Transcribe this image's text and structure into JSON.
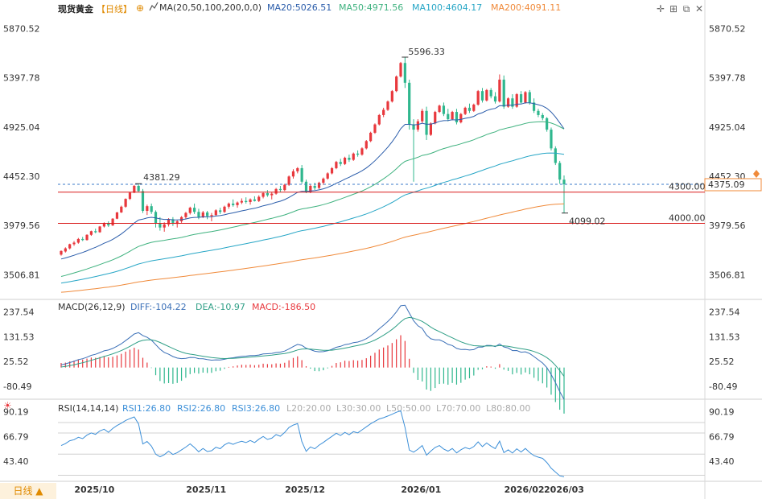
{
  "title": "现货黄金",
  "period_tag": "【日线】",
  "period_button": "日线 ▲",
  "colors": {
    "up": "#e8383d",
    "down": "#2fb78e",
    "ma20": "#2a5caa",
    "ma50": "#3fb27f",
    "ma100": "#27a6c6",
    "ma200": "#f08a3a",
    "diff": "#3a6fb7",
    "dea": "#2f9f86",
    "rsi": "#3c8fd8",
    "line": "#d91c1c",
    "dash": "#3a7ac8"
  },
  "ma": {
    "label": "MA(20,50,100,200,0,0)",
    "ma20": "MA20:5026.51",
    "ma50": "MA50:4971.56",
    "ma100": "MA100:4604.17",
    "ma200": "MA200:4091.11"
  },
  "macd": {
    "label": "MACD(26,12,9)",
    "diff": "DIFF:-104.22",
    "dea": "DEA:-10.97",
    "macd": "MACD:-186.50"
  },
  "rsi": {
    "label": "RSI(14,14,14)",
    "rsi1": "RSI1:26.80",
    "rsi2": "RSI2:26.80",
    "rsi3": "RSI3:26.80",
    "l20": "L20:20.00",
    "l30": "L30:30.00",
    "l50": "L50:50.00",
    "l70": "L70:70.00",
    "l80": "L80:80.00"
  },
  "axis": {
    "price_ticks": [
      "5870.52",
      "5397.78",
      "4925.04",
      "4452.30",
      "3979.56",
      "3506.81"
    ],
    "macd_ticks": [
      "237.54",
      "131.53",
      "25.52",
      "-80.49"
    ],
    "rsi_ticks": [
      "90.19",
      "66.79",
      "43.40"
    ],
    "dates": [
      "2025/10",
      "2025/11",
      "2025/12",
      "2026/01",
      "2026/02",
      "2026/03"
    ]
  },
  "annotations": {
    "high": "5596.33",
    "prev_high": "4381.29",
    "low": "4099.02",
    "line_4300": "4300.00",
    "line_4000": "4000.00",
    "current": "4375.09"
  },
  "chart_data": {
    "type": "candlestick",
    "title": "现货黄金 日线",
    "price_range": [
      3270,
      5990
    ],
    "macd_range": [
      -135,
      270
    ],
    "rsi_range": [
      25,
      96
    ],
    "horizontal_lines": [
      4300.0,
      4000.0,
      4375.09
    ],
    "candles": [
      [
        3700,
        3740,
        3690,
        3735
      ],
      [
        3730,
        3770,
        3720,
        3760
      ],
      [
        3760,
        3805,
        3750,
        3800
      ],
      [
        3800,
        3830,
        3785,
        3815
      ],
      [
        3815,
        3860,
        3805,
        3850
      ],
      [
        3850,
        3870,
        3830,
        3840
      ],
      [
        3840,
        3895,
        3835,
        3890
      ],
      [
        3890,
        3930,
        3880,
        3925
      ],
      [
        3925,
        3950,
        3905,
        3915
      ],
      [
        3915,
        3975,
        3910,
        3970
      ],
      [
        3970,
        4010,
        3960,
        4000
      ],
      [
        4000,
        4020,
        3965,
        3980
      ],
      [
        3980,
        4050,
        3975,
        4045
      ],
      [
        4045,
        4110,
        4040,
        4105
      ],
      [
        4105,
        4170,
        4100,
        4160
      ],
      [
        4160,
        4240,
        4150,
        4235
      ],
      [
        4235,
        4300,
        4225,
        4295
      ],
      [
        4295,
        4370,
        4290,
        4360
      ],
      [
        4360,
        4381,
        4300,
        4310
      ],
      [
        4310,
        4330,
        4100,
        4120
      ],
      [
        4120,
        4180,
        4080,
        4165
      ],
      [
        4165,
        4190,
        4090,
        4110
      ],
      [
        4110,
        4125,
        3960,
        4000
      ],
      [
        4000,
        4060,
        3930,
        3960
      ],
      [
        3960,
        4010,
        3920,
        3990
      ],
      [
        3990,
        4050,
        3970,
        4040
      ],
      [
        4040,
        4060,
        3975,
        3995
      ],
      [
        3995,
        4030,
        3960,
        4020
      ],
      [
        4020,
        4070,
        4005,
        4060
      ],
      [
        4060,
        4110,
        4040,
        4100
      ],
      [
        4100,
        4160,
        4085,
        4150
      ],
      [
        4150,
        4190,
        4090,
        4110
      ],
      [
        4110,
        4140,
        4040,
        4060
      ],
      [
        4060,
        4120,
        4050,
        4105
      ],
      [
        4105,
        4120,
        4040,
        4070
      ],
      [
        4070,
        4100,
        4020,
        4080
      ],
      [
        4080,
        4135,
        4070,
        4125
      ],
      [
        4125,
        4150,
        4090,
        4110
      ],
      [
        4110,
        4170,
        4100,
        4160
      ],
      [
        4160,
        4200,
        4140,
        4190
      ],
      [
        4190,
        4230,
        4160,
        4175
      ],
      [
        4175,
        4210,
        4150,
        4200
      ],
      [
        4200,
        4240,
        4185,
        4215
      ],
      [
        4215,
        4250,
        4190,
        4205
      ],
      [
        4205,
        4240,
        4180,
        4230
      ],
      [
        4230,
        4260,
        4210,
        4215
      ],
      [
        4215,
        4270,
        4205,
        4255
      ],
      [
        4255,
        4300,
        4240,
        4290
      ],
      [
        4290,
        4320,
        4255,
        4270
      ],
      [
        4270,
        4300,
        4230,
        4285
      ],
      [
        4285,
        4340,
        4275,
        4330
      ],
      [
        4330,
        4360,
        4300,
        4320
      ],
      [
        4320,
        4380,
        4310,
        4370
      ],
      [
        4370,
        4460,
        4360,
        4450
      ],
      [
        4450,
        4520,
        4430,
        4500
      ],
      [
        4500,
        4540,
        4480,
        4530
      ],
      [
        4530,
        4560,
        4380,
        4400
      ],
      [
        4400,
        4420,
        4290,
        4300
      ],
      [
        4300,
        4370,
        4290,
        4360
      ],
      [
        4360,
        4390,
        4320,
        4340
      ],
      [
        4340,
        4400,
        4330,
        4390
      ],
      [
        4390,
        4440,
        4370,
        4430
      ],
      [
        4430,
        4490,
        4420,
        4480
      ],
      [
        4480,
        4540,
        4470,
        4530
      ],
      [
        4530,
        4600,
        4520,
        4590
      ],
      [
        4590,
        4620,
        4550,
        4570
      ],
      [
        4570,
        4640,
        4560,
        4630
      ],
      [
        4630,
        4660,
        4590,
        4610
      ],
      [
        4610,
        4680,
        4600,
        4670
      ],
      [
        4670,
        4700,
        4640,
        4660
      ],
      [
        4660,
        4730,
        4650,
        4720
      ],
      [
        4720,
        4800,
        4710,
        4790
      ],
      [
        4790,
        4880,
        4780,
        4870
      ],
      [
        4870,
        4960,
        4860,
        4950
      ],
      [
        4950,
        5050,
        4940,
        5040
      ],
      [
        5040,
        5110,
        5020,
        5090
      ],
      [
        5090,
        5180,
        5080,
        5170
      ],
      [
        5170,
        5280,
        5160,
        5270
      ],
      [
        5270,
        5420,
        5260,
        5410
      ],
      [
        5410,
        5550,
        5400,
        5540
      ],
      [
        5540,
        5596,
        5300,
        5350
      ],
      [
        5350,
        5380,
        4900,
        4950
      ],
      [
        4950,
        5000,
        4400,
        4900
      ],
      [
        4900,
        5000,
        4880,
        4980
      ],
      [
        4980,
        5100,
        4960,
        5080
      ],
      [
        5080,
        5120,
        4800,
        4850
      ],
      [
        4850,
        4970,
        4840,
        4960
      ],
      [
        4960,
        5080,
        4950,
        5070
      ],
      [
        5070,
        5140,
        5060,
        5130
      ],
      [
        5130,
        5160,
        5030,
        5050
      ],
      [
        5050,
        5100,
        4980,
        5000
      ],
      [
        5000,
        5080,
        4990,
        5070
      ],
      [
        5070,
        5100,
        4950,
        4970
      ],
      [
        4970,
        5060,
        4960,
        5050
      ],
      [
        5050,
        5120,
        5040,
        5110
      ],
      [
        5110,
        5150,
        5060,
        5080
      ],
      [
        5080,
        5150,
        5070,
        5140
      ],
      [
        5140,
        5280,
        5130,
        5270
      ],
      [
        5270,
        5300,
        5160,
        5180
      ],
      [
        5180,
        5290,
        5170,
        5280
      ],
      [
        5280,
        5300,
        5200,
        5220
      ],
      [
        5220,
        5260,
        5150,
        5170
      ],
      [
        5170,
        5430,
        5160,
        5380
      ],
      [
        5380,
        5420,
        5100,
        5120
      ],
      [
        5120,
        5210,
        5110,
        5200
      ],
      [
        5200,
        5240,
        5100,
        5120
      ],
      [
        5120,
        5250,
        5110,
        5240
      ],
      [
        5240,
        5270,
        5150,
        5160
      ],
      [
        5160,
        5270,
        5150,
        5260
      ],
      [
        5260,
        5280,
        5140,
        5160
      ],
      [
        5160,
        5200,
        5060,
        5080
      ],
      [
        5080,
        5100,
        5020,
        5040
      ],
      [
        5040,
        5060,
        4990,
        5010
      ],
      [
        5010,
        5020,
        4880,
        4900
      ],
      [
        4900,
        4920,
        4700,
        4720
      ],
      [
        4720,
        4740,
        4560,
        4580
      ],
      [
        4580,
        4600,
        4380,
        4420
      ],
      [
        4420,
        4460,
        4099,
        4375
      ]
    ]
  }
}
